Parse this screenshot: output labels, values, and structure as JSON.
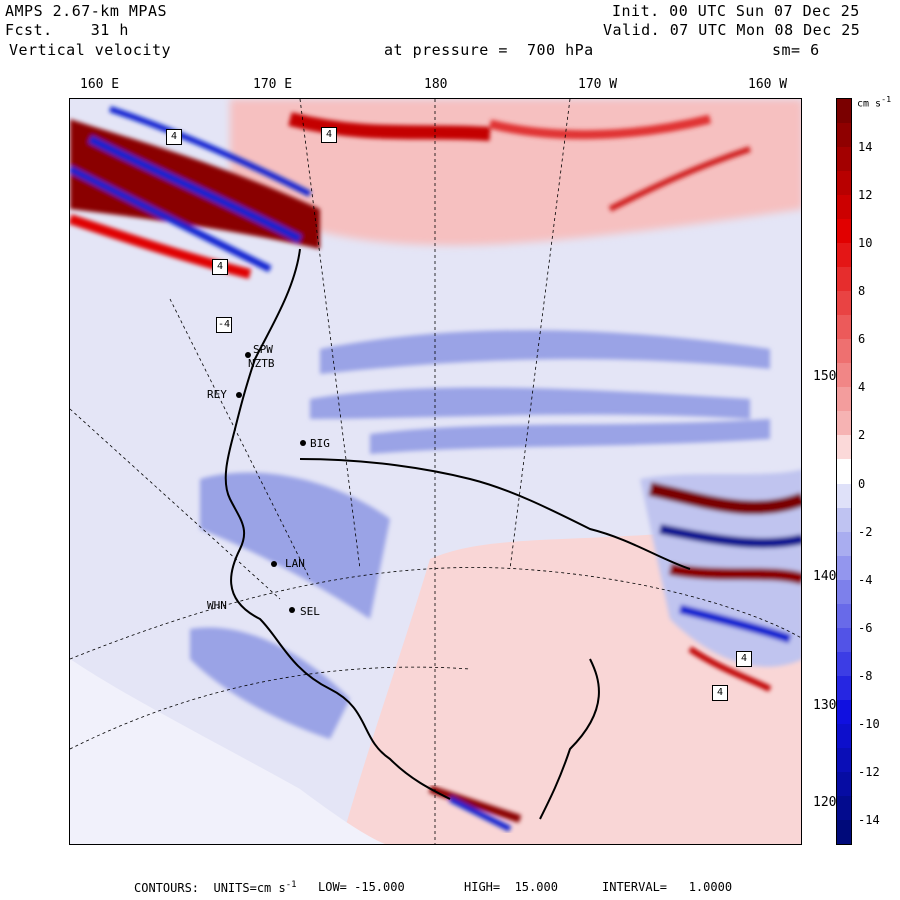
{
  "header": {
    "model": "AMPS 2.67-km MPAS",
    "fcst": "Fcst.    31 h",
    "field": "Vertical velocity",
    "pressure": "at pressure =  700 hPa",
    "init": "Init. 00 UTC Sun 07 Dec 25",
    "valid": "Valid. 07 UTC Mon 08 Dec 25",
    "smooth": "sm= 6"
  },
  "longitude_labels": [
    "160 E",
    "170 E",
    "180",
    "170 W",
    "160 W"
  ],
  "latitude_labels": [
    "150 W",
    "140 W",
    "130 W",
    "120 W"
  ],
  "stations": [
    "SPW",
    "NZTB",
    "REY",
    "BIG",
    "LAN",
    "SEL",
    "WHN"
  ],
  "colorbar": {
    "unit_label": "cm s",
    "unit_exp": "-1",
    "tick_labels": [
      "14",
      "12",
      "10",
      "8",
      "6",
      "4",
      "2",
      "0",
      "-2",
      "-4",
      "-6",
      "-8",
      "-10",
      "-12",
      "-14"
    ],
    "levels": [
      15,
      14,
      13,
      12,
      11,
      10,
      9,
      8,
      7,
      6,
      5,
      4,
      3,
      2,
      1,
      0,
      -1,
      -2,
      -3,
      -4,
      -5,
      -6,
      -7,
      -8,
      -9,
      -10,
      -11,
      -12,
      -13,
      -14,
      -15
    ],
    "colors": {
      "max_red": "#7a0000",
      "red": "#e10000",
      "light_red": "#f6b3b3",
      "white": "#ffffff",
      "light_blue": "#bfc3f2",
      "blue": "#1010e0",
      "max_blue": "#000a7a"
    }
  },
  "footer": {
    "label": "CONTOURS:  UNITS=cm s",
    "exp": "-1",
    "low": "LOW= -15.000",
    "high": "HIGH=  15.000",
    "interval": "INTERVAL=   1.0000"
  },
  "highlight_values": [
    "4",
    "-4"
  ]
}
